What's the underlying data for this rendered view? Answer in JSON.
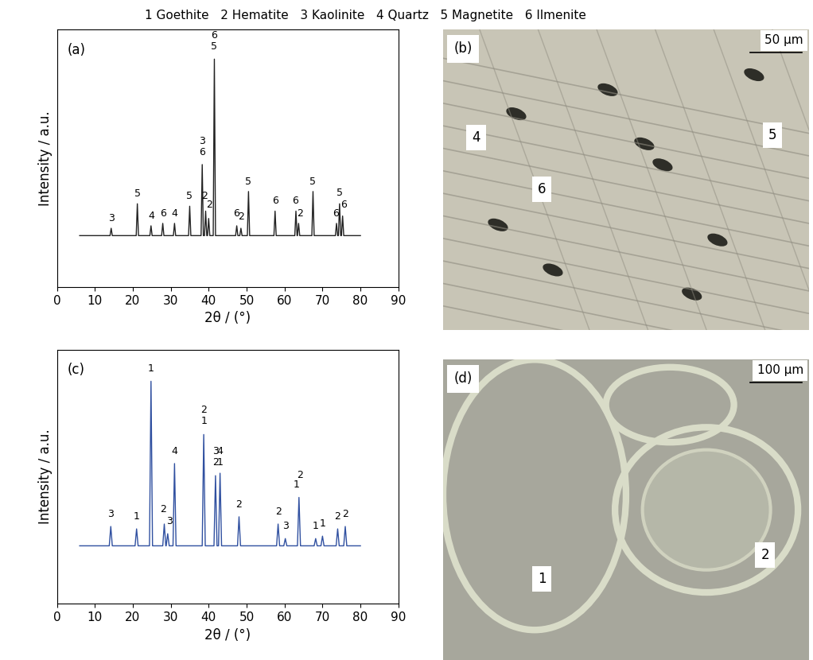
{
  "phase_key": "1 Goethite   2 Hematite   3 Kaolinite   4 Quartz   5 Magnetite   6 Ilmenite",
  "chart_data": [
    {
      "type": "line",
      "panel_label": "(a)",
      "x_label": "2θ / (°)",
      "y_label": "Intensity / a.u.",
      "color": "#222222",
      "xlim": [
        0,
        90
      ],
      "xticks": [
        0,
        10,
        20,
        30,
        40,
        50,
        60,
        70,
        80,
        90
      ],
      "ylim": [
        0,
        105
      ],
      "tick_labels": "x",
      "x": [
        6,
        14.0,
        14.3,
        14.6,
        20.9,
        21.2,
        21.5,
        24.5,
        24.8,
        25.1,
        27.6,
        27.9,
        28.2,
        30.7,
        31.0,
        31.3,
        34.7,
        35.0,
        35.3,
        38.0,
        38.3,
        38.6,
        38.9,
        39.2,
        39.5,
        39.7,
        40.0,
        40.3,
        41.2,
        41.5,
        41.8,
        47.1,
        47.4,
        47.7,
        48.2,
        48.5,
        48.8,
        50.2,
        50.5,
        50.8,
        57.2,
        57.5,
        57.8,
        62.7,
        63.0,
        63.3,
        63.4,
        63.7,
        64.0,
        67.2,
        67.5,
        67.8,
        73.4,
        73.7,
        74.0,
        74.2,
        74.5,
        74.8,
        75.0,
        75.3,
        75.6,
        80
      ],
      "values": [
        21,
        21,
        24,
        21,
        21,
        34,
        21,
        21,
        25,
        21,
        21,
        26,
        21,
        21,
        26,
        21,
        21,
        33,
        21,
        21,
        50,
        21,
        21,
        31,
        21,
        21,
        28,
        21,
        21,
        93,
        21,
        21,
        25,
        21,
        21,
        24,
        21,
        21,
        39,
        21,
        21,
        31,
        21,
        21,
        31,
        21,
        21,
        26,
        21,
        21,
        39,
        21,
        21,
        26,
        21,
        21,
        34,
        21,
        21,
        29,
        21,
        21
      ],
      "annotations": [
        {
          "x": 14.3,
          "y": 26,
          "text": "3"
        },
        {
          "x": 21.2,
          "y": 36,
          "text": "5"
        },
        {
          "x": 24.8,
          "y": 27,
          "text": "4"
        },
        {
          "x": 27.9,
          "y": 28,
          "text": "6"
        },
        {
          "x": 31.0,
          "y": 28,
          "text": "4"
        },
        {
          "x": 35.0,
          "y": 35,
          "text": "5"
        },
        {
          "x": 38.3,
          "y": 57.5,
          "text": "3"
        },
        {
          "x": 38.3,
          "y": 53,
          "text": "6"
        },
        {
          "x": 39.0,
          "y": 35,
          "text": "2"
        },
        {
          "x": 40.2,
          "y": 31.5,
          "text": "2"
        },
        {
          "x": 41.5,
          "y": 100.5,
          "text": "6"
        },
        {
          "x": 41.5,
          "y": 96,
          "text": "5"
        },
        {
          "x": 47.2,
          "y": 28,
          "text": "6"
        },
        {
          "x": 48.6,
          "y": 26.5,
          "text": "2"
        },
        {
          "x": 50.5,
          "y": 41,
          "text": "5"
        },
        {
          "x": 57.5,
          "y": 33,
          "text": "6"
        },
        {
          "x": 62.8,
          "y": 33,
          "text": "6"
        },
        {
          "x": 64.0,
          "y": 28,
          "text": "2"
        },
        {
          "x": 67.5,
          "y": 41,
          "text": "5"
        },
        {
          "x": 73.4,
          "y": 28,
          "text": "6"
        },
        {
          "x": 74.5,
          "y": 36.5,
          "text": "5"
        },
        {
          "x": 75.6,
          "y": 31.5,
          "text": "6"
        }
      ]
    },
    {
      "type": "line",
      "panel_label": "(c)",
      "x_label": "2θ / (°)",
      "y_label": "Intensity / a.u.",
      "color": "#3050a0",
      "xlim": [
        0,
        90
      ],
      "xticks": [
        0,
        10,
        20,
        30,
        40,
        50,
        60,
        70,
        80,
        90
      ],
      "ylim": [
        0,
        105
      ],
      "tick_labels": "x",
      "x": [
        6,
        13.8,
        14.2,
        14.6,
        20.6,
        21.0,
        21.4,
        24.4,
        24.8,
        25.2,
        27.9,
        28.3,
        28.7,
        28.8,
        29.2,
        29.6,
        30.6,
        31.0,
        31.4,
        38.3,
        38.7,
        39.1,
        41.4,
        41.8,
        42.2,
        42.6,
        43.0,
        43.4,
        47.6,
        48.0,
        48.4,
        57.9,
        58.3,
        58.7,
        59.8,
        60.2,
        60.6,
        63.4,
        63.8,
        64.2,
        67.8,
        68.2,
        68.6,
        69.6,
        70.0,
        70.4,
        73.6,
        74.0,
        74.4,
        75.6,
        76.0,
        76.4,
        80
      ],
      "values": [
        24,
        24,
        32,
        24,
        24,
        31,
        24,
        24,
        92,
        24,
        24,
        33,
        24,
        24,
        29,
        24,
        24,
        58,
        24,
        24,
        70,
        24,
        24,
        53,
        24,
        24,
        54,
        24,
        24,
        36,
        24,
        24,
        33,
        24,
        24,
        27,
        24,
        24,
        44,
        24,
        24,
        27,
        24,
        24,
        28,
        24,
        24,
        31,
        24,
        24,
        32,
        24,
        24
      ],
      "annotations": [
        {
          "x": 14.2,
          "y": 35,
          "text": "3"
        },
        {
          "x": 21.0,
          "y": 34,
          "text": "1"
        },
        {
          "x": 24.8,
          "y": 95,
          "text": "1"
        },
        {
          "x": 27.9,
          "y": 37,
          "text": "2"
        },
        {
          "x": 29.6,
          "y": 32,
          "text": "3"
        },
        {
          "x": 31.0,
          "y": 61,
          "text": "4"
        },
        {
          "x": 38.7,
          "y": 78,
          "text": "2"
        },
        {
          "x": 38.7,
          "y": 73.5,
          "text": "1"
        },
        {
          "x": 41.8,
          "y": 61,
          "text": "3"
        },
        {
          "x": 41.8,
          "y": 56.5,
          "text": "2"
        },
        {
          "x": 43.0,
          "y": 61,
          "text": "4"
        },
        {
          "x": 43.0,
          "y": 56.5,
          "text": "1"
        },
        {
          "x": 48.0,
          "y": 39,
          "text": "2"
        },
        {
          "x": 58.3,
          "y": 36,
          "text": "2"
        },
        {
          "x": 60.2,
          "y": 30,
          "text": "3"
        },
        {
          "x": 63.2,
          "y": 47,
          "text": "1"
        },
        {
          "x": 64.0,
          "y": 51,
          "text": "2"
        },
        {
          "x": 68.2,
          "y": 30,
          "text": "1"
        },
        {
          "x": 70.0,
          "y": 31,
          "text": "1"
        },
        {
          "x": 74.0,
          "y": 34,
          "text": "2"
        },
        {
          "x": 76.0,
          "y": 35,
          "text": "2"
        }
      ]
    }
  ],
  "images": [
    {
      "panel_label": "(b)",
      "labels": [
        "4",
        "6",
        "5"
      ],
      "scale_bar": "50 μm"
    },
    {
      "panel_label": "(d)",
      "labels": [
        "1",
        "2"
      ],
      "scale_bar": "100 μm"
    }
  ]
}
